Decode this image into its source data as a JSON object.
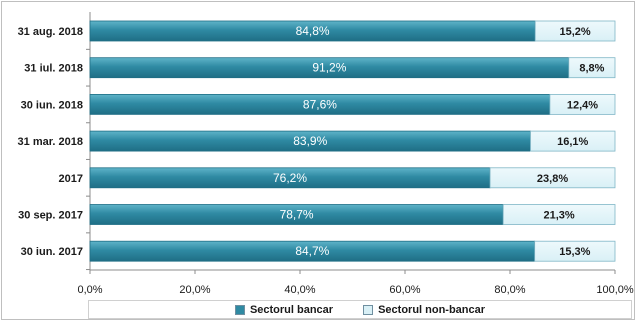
{
  "chart_data": {
    "type": "bar",
    "orientation": "horizontal",
    "stacked": true,
    "categories": [
      "31 aug. 2018",
      "31 iul. 2018",
      "30 iun. 2018",
      "31 mar. 2018",
      "2017",
      "30 sep. 2017",
      "30 iun. 2017"
    ],
    "series": [
      {
        "name": "Sectorul bancar",
        "values": [
          84.8,
          91.2,
          87.6,
          83.9,
          76.2,
          78.7,
          84.7
        ],
        "labels": [
          "84,8%",
          "91,2%",
          "87,6%",
          "83,9%",
          "76,2%",
          "78,7%",
          "84,7%"
        ],
        "color": "#2f8aa3"
      },
      {
        "name": "Sectorul non-bancar",
        "values": [
          15.2,
          8.8,
          12.4,
          16.1,
          23.8,
          21.3,
          15.3
        ],
        "labels": [
          "15,2%",
          "8,8%",
          "12,4%",
          "16,1%",
          "23,8%",
          "21,3%",
          "15,3%"
        ],
        "color": "#d9f0f6"
      }
    ],
    "xlim": [
      0,
      100
    ],
    "xticks": [
      "0,0%",
      "20,0%",
      "40,0%",
      "60,0%",
      "80,0%",
      "100,0%"
    ],
    "legend_position": "bottom",
    "grid": false
  }
}
